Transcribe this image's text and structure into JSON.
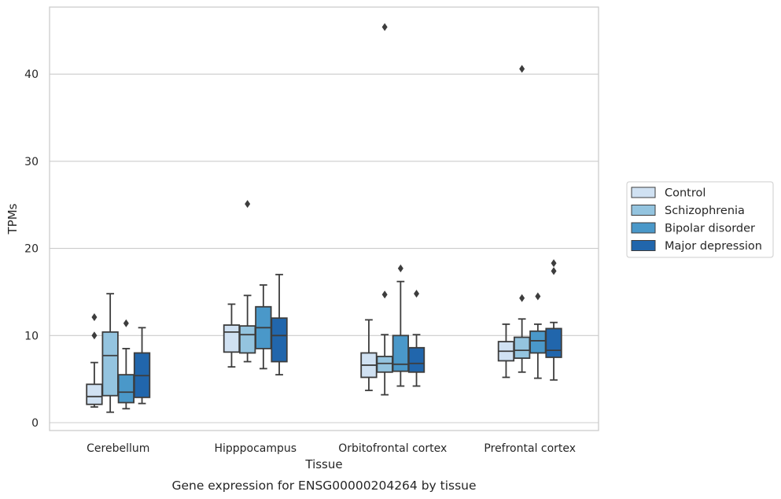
{
  "chart_data": {
    "type": "box",
    "xlabel": "Tissue",
    "ylabel": "TPMs",
    "caption": "Gene expression for ENSG00000204264 by tissue",
    "ylim": [
      -1,
      48
    ],
    "yticks": [
      0,
      10,
      20,
      30,
      40
    ],
    "grid": "horizontal",
    "legend_position": "right",
    "categories": [
      "Cerebellum",
      "Hipppocampus",
      "Orbitofrontal cortex",
      "Prefrontal cortex"
    ],
    "series": [
      {
        "name": "Control",
        "color": "#d0e1f2",
        "boxes": [
          {
            "whislo": 1.8,
            "q1": 2.1,
            "med": 3.0,
            "q3": 4.4,
            "whishi": 6.9,
            "fliers": [
              10.0,
              12.1
            ]
          },
          {
            "whislo": 6.4,
            "q1": 8.1,
            "med": 10.4,
            "q3": 11.2,
            "whishi": 13.6,
            "fliers": []
          },
          {
            "whislo": 3.7,
            "q1": 5.2,
            "med": 6.6,
            "q3": 8.0,
            "whishi": 11.8,
            "fliers": []
          },
          {
            "whislo": 5.2,
            "q1": 7.1,
            "med": 8.2,
            "q3": 9.3,
            "whishi": 11.3,
            "fliers": []
          }
        ]
      },
      {
        "name": "Schizophrenia",
        "color": "#94c4df",
        "boxes": [
          {
            "whislo": 1.2,
            "q1": 3.1,
            "med": 7.7,
            "q3": 10.4,
            "whishi": 14.8,
            "fliers": []
          },
          {
            "whislo": 7.0,
            "q1": 8.0,
            "med": 10.1,
            "q3": 11.1,
            "whishi": 14.6,
            "fliers": [
              25.1
            ]
          },
          {
            "whislo": 3.2,
            "q1": 5.8,
            "med": 6.8,
            "q3": 7.6,
            "whishi": 10.1,
            "fliers": [
              14.7,
              45.4
            ]
          },
          {
            "whislo": 5.8,
            "q1": 7.4,
            "med": 8.3,
            "q3": 9.8,
            "whishi": 11.9,
            "fliers": [
              14.3,
              40.6
            ]
          }
        ]
      },
      {
        "name": "Bipolar disorder",
        "color": "#4a98c9",
        "boxes": [
          {
            "whislo": 1.6,
            "q1": 2.3,
            "med": 3.5,
            "q3": 5.5,
            "whishi": 8.5,
            "fliers": [
              11.4
            ]
          },
          {
            "whislo": 6.2,
            "q1": 8.5,
            "med": 10.9,
            "q3": 13.3,
            "whishi": 15.8,
            "fliers": []
          },
          {
            "whislo": 4.2,
            "q1": 5.9,
            "med": 6.7,
            "q3": 10.0,
            "whishi": 16.2,
            "fliers": [
              17.7
            ]
          },
          {
            "whislo": 5.1,
            "q1": 8.0,
            "med": 9.4,
            "q3": 10.5,
            "whishi": 11.3,
            "fliers": [
              14.5
            ]
          }
        ]
      },
      {
        "name": "Major depression",
        "color": "#2166ac",
        "boxes": [
          {
            "whislo": 2.2,
            "q1": 2.9,
            "med": 5.4,
            "q3": 8.0,
            "whishi": 10.9,
            "fliers": []
          },
          {
            "whislo": 5.5,
            "q1": 7.0,
            "med": 10.0,
            "q3": 12.0,
            "whishi": 17.0,
            "fliers": []
          },
          {
            "whislo": 4.2,
            "q1": 5.8,
            "med": 6.8,
            "q3": 8.6,
            "whishi": 10.1,
            "fliers": [
              14.8
            ]
          },
          {
            "whislo": 4.9,
            "q1": 7.5,
            "med": 8.3,
            "q3": 10.8,
            "whishi": 11.5,
            "fliers": [
              17.4,
              18.3
            ]
          }
        ]
      }
    ]
  }
}
